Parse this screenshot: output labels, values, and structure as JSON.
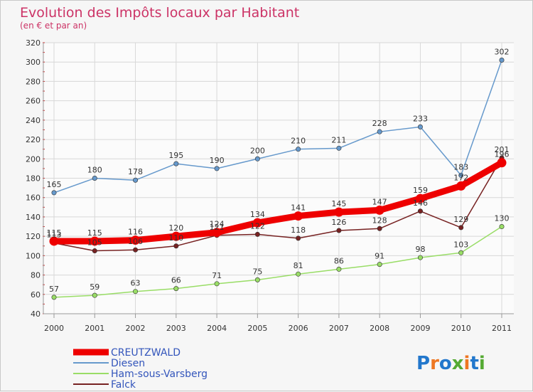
{
  "chart_data": {
    "type": "line",
    "title": "Evolution des Impôts locaux par Habitant",
    "subtitle": "(en € et par an)",
    "x": [
      "2000",
      "2001",
      "2002",
      "2003",
      "2004",
      "2005",
      "2006",
      "2007",
      "2008",
      "2009",
      "2010",
      "2011"
    ],
    "ylim": [
      40,
      320
    ],
    "yticks": [
      40,
      60,
      80,
      100,
      120,
      140,
      160,
      180,
      200,
      220,
      240,
      260,
      280,
      300,
      320
    ],
    "grid": true,
    "legend_position": "bottom-left",
    "series": [
      {
        "name": "CREUTZWALD",
        "color": "#ee0000",
        "values": [
          115,
          115,
          116,
          120,
          124,
          134,
          141,
          145,
          147,
          159,
          172,
          196
        ],
        "labels": [
          "115",
          "115",
          "116",
          "120",
          "124",
          "134",
          "141",
          "145",
          "147",
          "159",
          "172",
          "196"
        ]
      },
      {
        "name": "Diesen",
        "color": "#6699cc",
        "values": [
          165,
          180,
          178,
          195,
          190,
          200,
          210,
          211,
          228,
          233,
          183,
          302
        ],
        "labels": [
          "165",
          "180",
          "178",
          "195",
          "190",
          "200",
          "210",
          "211",
          "228",
          "233",
          "183",
          "302"
        ]
      },
      {
        "name": "Ham-sous-Varsberg",
        "color": "#99dd66",
        "values": [
          57,
          59,
          63,
          66,
          71,
          75,
          81,
          86,
          91,
          98,
          103,
          130
        ],
        "labels": [
          "57",
          "59",
          "63",
          "66",
          "71",
          "75",
          "81",
          "86",
          "91",
          "98",
          "103",
          "130"
        ]
      },
      {
        "name": "Falck",
        "color": "#772222",
        "values": [
          113,
          105,
          106,
          110,
          121,
          122,
          118,
          126,
          128,
          146,
          129,
          201
        ],
        "labels": [
          "113",
          "105",
          "106",
          "110",
          "121",
          "122",
          "118",
          "126",
          "128",
          "146",
          "129",
          "201"
        ]
      }
    ]
  },
  "logo": {
    "text": "Proxiti",
    "colors": [
      "#2277cc",
      "#ee7722",
      "#2277cc",
      "#55aa33",
      "#ee7722",
      "#2277cc",
      "#55aa33"
    ]
  }
}
